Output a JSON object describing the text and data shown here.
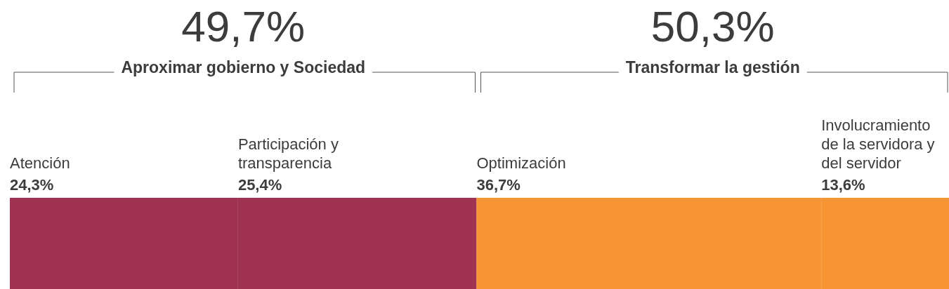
{
  "chart_data": {
    "type": "bar",
    "stacked": true,
    "orientation": "horizontal",
    "categories": [
      null
    ],
    "xlim": [
      0,
      100
    ],
    "tick_labels": false,
    "legend": false,
    "series": [
      {
        "name": "Atención",
        "color": "#9e3250",
        "values": [
          24.3
        ],
        "value_labels": [
          "24,3%"
        ]
      },
      {
        "name": "Participación y transparencia",
        "color": "#9e3250",
        "values": [
          25.4
        ],
        "value_labels": [
          "25,4%"
        ]
      },
      {
        "name": "Optimización",
        "color": "#f79433",
        "values": [
          36.7
        ],
        "value_labels": [
          "36,7%"
        ]
      },
      {
        "name": "Involucramiento de la servidora y del servidor",
        "color": "#f79433",
        "values": [
          13.6
        ],
        "value_labels": [
          "13,6%"
        ]
      }
    ],
    "annotations": [
      "49,7%",
      "Aproximar gobierno y Sociedad",
      "50,3%",
      "Transformar la gestión"
    ]
  }
}
